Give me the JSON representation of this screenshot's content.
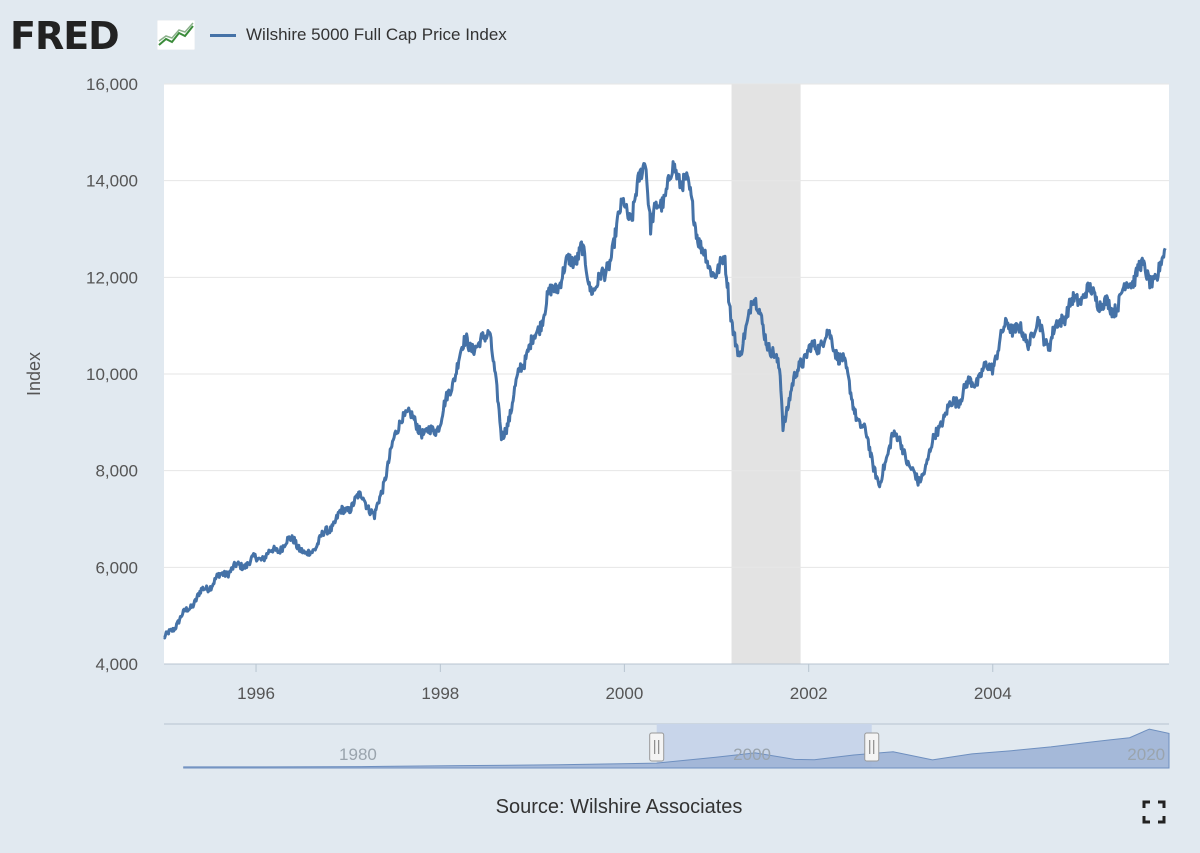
{
  "header": {
    "logo_text": "FRED",
    "logo_icon": "trend-line-chart-icon",
    "legend_label": "Wilshire 5000 Full Cap Price Index"
  },
  "footer": {
    "source_text": "Source: Wilshire Associates",
    "fullscreen_icon": "fullscreen-expand-icon"
  },
  "colors": {
    "series": "#4572a7",
    "recession": "#e3e3e3",
    "navigator_fill": "#9fb4d6",
    "navigator_selection": "#c8d5ea",
    "background": "#e1e9f0",
    "plot_background": "#ffffff"
  },
  "chart_data": {
    "type": "line",
    "title": "",
    "xlabel": "",
    "ylabel": "Index",
    "ylim": [
      4000,
      16000
    ],
    "xlim": [
      "1995-01-01",
      "2005-11-30"
    ],
    "grid": true,
    "legend_position": "top-left",
    "y_ticks": [
      "4,000",
      "6,000",
      "8,000",
      "10,000",
      "12,000",
      "14,000",
      "16,000"
    ],
    "x_ticks": [
      "1996",
      "1998",
      "2000",
      "2002",
      "2004"
    ],
    "recession_shading": [
      [
        "2001-03-01",
        "2001-11-30"
      ]
    ],
    "series": [
      {
        "name": "Wilshire 5000 Full Cap Price Index",
        "x": [
          "1995-01-01",
          "1995-03-01",
          "1995-06-01",
          "1995-09-01",
          "1995-12-01",
          "1996-03-01",
          "1996-06-01",
          "1996-07-15",
          "1996-10-01",
          "1996-12-01",
          "1997-03-01",
          "1997-04-15",
          "1997-06-01",
          "1997-08-01",
          "1997-10-01",
          "1997-11-01",
          "1998-01-01",
          "1998-03-15",
          "1998-04-15",
          "1998-06-01",
          "1998-07-15",
          "1998-08-31",
          "1998-10-08",
          "1998-11-15",
          "1998-12-31",
          "1999-03-01",
          "1999-05-15",
          "1999-07-15",
          "1999-08-15",
          "1999-10-15",
          "1999-12-31",
          "2000-01-31",
          "2000-03-24",
          "2000-04-14",
          "2000-05-15",
          "2000-06-15",
          "2000-07-15",
          "2000-09-01",
          "2000-10-15",
          "2000-12-01",
          "2001-01-31",
          "2001-03-01",
          "2001-04-04",
          "2001-05-21",
          "2001-07-01",
          "2001-09-10",
          "2001-09-21",
          "2001-11-30",
          "2002-01-15",
          "2002-03-15",
          "2002-05-15",
          "2002-07-23",
          "2002-08-22",
          "2002-10-09",
          "2002-11-27",
          "2003-01-15",
          "2003-03-11",
          "2003-06-15",
          "2003-09-15",
          "2003-12-31",
          "2004-03-01",
          "2004-05-15",
          "2004-07-01",
          "2004-08-12",
          "2004-10-01",
          "2004-12-31",
          "2005-02-15",
          "2005-04-15",
          "2005-06-15",
          "2005-08-01",
          "2005-10-15",
          "2005-11-15"
        ],
        "values": [
          4500,
          4900,
          5500,
          5900,
          6100,
          6300,
          6600,
          6200,
          6700,
          7100,
          7500,
          7000,
          8000,
          9200,
          9000,
          8700,
          9000,
          10300,
          10700,
          10500,
          11000,
          8700,
          9200,
          10200,
          10600,
          11500,
          12200,
          12600,
          11800,
          12000,
          13600,
          13200,
          14600,
          13000,
          13500,
          13800,
          14200,
          14000,
          13000,
          12100,
          12300,
          11200,
          10200,
          11700,
          11000,
          10000,
          9000,
          10300,
          10500,
          10800,
          10300,
          8900,
          8700,
          7600,
          8800,
          8400,
          7700,
          9100,
          9700,
          10200,
          11100,
          10700,
          11000,
          10600,
          11200,
          11700,
          11600,
          11300,
          11800,
          12200,
          11900,
          12600
        ],
        "stroke_width": 3
      }
    ],
    "navigator": {
      "labels": [
        "1980",
        "2000",
        "2020"
      ],
      "range": [
        1970,
        2021
      ],
      "selected_range": [
        "1995-01-01",
        "2005-11-30"
      ],
      "values": [
        [
          1971,
          1000
        ],
        [
          1975,
          1000
        ],
        [
          1980,
          1300
        ],
        [
          1985,
          2200
        ],
        [
          1990,
          3000
        ],
        [
          1995,
          4500
        ],
        [
          1998,
          10000
        ],
        [
          2000,
          14000
        ],
        [
          2002,
          8000
        ],
        [
          2003,
          7600
        ],
        [
          2005,
          12000
        ],
        [
          2007,
          15000
        ],
        [
          2009,
          7500
        ],
        [
          2011,
          13000
        ],
        [
          2013,
          16000
        ],
        [
          2015,
          19500
        ],
        [
          2017,
          24000
        ],
        [
          2018,
          26000
        ],
        [
          2019,
          28000
        ],
        [
          2020,
          36000
        ],
        [
          2021,
          32000
        ]
      ],
      "max_value": 37000
    }
  }
}
